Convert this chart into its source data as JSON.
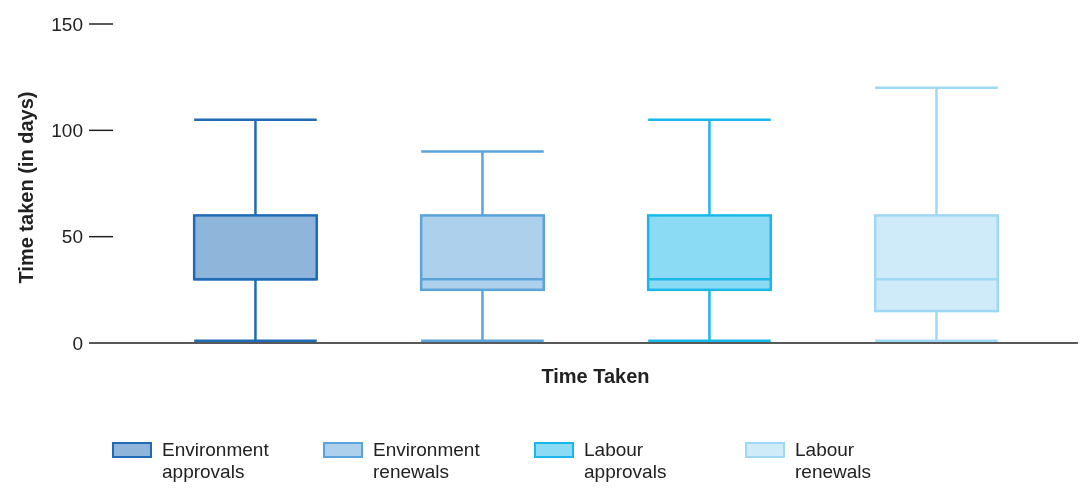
{
  "chart_data": {
    "type": "box",
    "xlabel": "Time Taken",
    "ylabel": "Time taken (in days)",
    "categories": [
      null
    ],
    "ylim": [
      0,
      150
    ],
    "yticks": [
      0,
      50,
      100,
      150
    ],
    "legend": "bottom left",
    "series": [
      {
        "name": "Environment approvals",
        "color": "#1f6bb5",
        "boxes": [
          {
            "low": 1,
            "q1": 30,
            "median": 30,
            "q3": 60,
            "high": 105
          }
        ]
      },
      {
        "name": "Environment renewals",
        "color": "#5ba3db",
        "boxes": [
          {
            "low": 1,
            "q1": 25,
            "median": 30,
            "q3": 60,
            "high": 90
          }
        ]
      },
      {
        "name": "Labour approvals",
        "color": "#1ab8ea",
        "boxes": [
          {
            "low": 1,
            "q1": 25,
            "median": 30,
            "q3": 60,
            "high": 105
          }
        ]
      },
      {
        "name": "Labour renewals",
        "color": "#9fd8f3",
        "boxes": [
          {
            "low": 1,
            "q1": 15,
            "median": 30,
            "q3": 60,
            "high": 120
          }
        ]
      }
    ]
  }
}
